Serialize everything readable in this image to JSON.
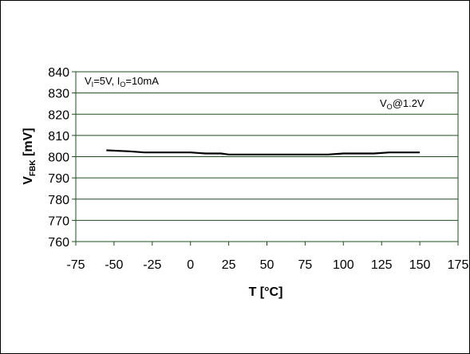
{
  "chart_data": {
    "type": "line",
    "xlabel_main": "T [°C]",
    "ylabel_main": "V",
    "ylabel_sub": "FBK",
    "ylabel_unit": " [mV]",
    "xlim": [
      -75,
      175
    ],
    "ylim": [
      760,
      840
    ],
    "x_ticks": [
      -75,
      -50,
      -25,
      0,
      25,
      50,
      75,
      100,
      125,
      150,
      175
    ],
    "y_ticks": [
      760,
      770,
      780,
      790,
      800,
      810,
      820,
      830,
      840
    ],
    "grid": "horizontal",
    "line_color": "#000000",
    "grid_color": "#1f4d1f",
    "annotation_conditions": {
      "v": "V",
      "v_sub": "I",
      "v_rest": "=5V, ",
      "i": "I",
      "i_sub": "O",
      "i_rest": "=10mA"
    },
    "annotation_output": {
      "v": "V",
      "v_sub": "O",
      "v_rest": "@1.2V"
    },
    "series": [
      {
        "x": [
          -55,
          -40,
          -30,
          -20,
          -10,
          0,
          10,
          20,
          25,
          40,
          50,
          60,
          75,
          90,
          100,
          110,
          120,
          130,
          140,
          150
        ],
        "y": [
          803,
          802.5,
          802,
          802,
          802,
          802,
          801.5,
          801.5,
          801,
          801,
          801,
          801,
          801,
          801,
          801.5,
          801.5,
          801.5,
          802,
          802,
          802
        ]
      }
    ]
  }
}
